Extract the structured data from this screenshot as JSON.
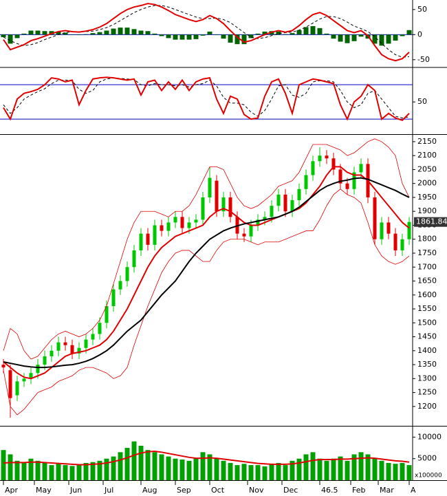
{
  "chart_data": [
    {
      "type": "macd",
      "xlim": [
        0,
        60
      ],
      "ylim": [
        -64,
        69
      ],
      "yticks": [
        -50,
        0,
        50
      ],
      "hlines": [
        0
      ],
      "series": [
        {
          "color": "#006400",
          "style": "bar",
          "values": [
            -5,
            -18,
            -7,
            2,
            8,
            8,
            7,
            7,
            6,
            4,
            0,
            -1,
            1,
            3,
            5,
            8,
            12,
            14,
            14,
            11,
            8,
            7,
            2,
            -3,
            -7,
            -10,
            -10,
            -10,
            -9,
            -2,
            6,
            -1,
            -8,
            -16,
            -19,
            -19,
            -7,
            2,
            6,
            7,
            6,
            1,
            3,
            9,
            15,
            17,
            13,
            2,
            -8,
            -14,
            -17,
            -13,
            -4,
            -8,
            -18,
            -22,
            -18,
            -12,
            -3,
            9
          ]
        },
        {
          "color": "#000000",
          "dash": true,
          "width": 1,
          "values": [
            -5,
            -12,
            -18,
            -22,
            -20,
            -16,
            -10,
            -5,
            0,
            4,
            6,
            6,
            6,
            7,
            10,
            14,
            20,
            28,
            36,
            44,
            50,
            55,
            58,
            58,
            55,
            50,
            45,
            40,
            35,
            32,
            32,
            33,
            30,
            24,
            14,
            4,
            -5,
            -8,
            -6,
            -2,
            2,
            4,
            5,
            9,
            15,
            23,
            31,
            36,
            36,
            32,
            25,
            17,
            12,
            6,
            -4,
            -18,
            -30,
            -40,
            -45,
            -44
          ]
        },
        {
          "color": "#e00000",
          "width": 2,
          "values": [
            -10,
            -30,
            -25,
            -20,
            -12,
            -8,
            -3,
            2,
            6,
            8,
            6,
            5,
            7,
            10,
            15,
            22,
            32,
            42,
            50,
            55,
            58,
            62,
            60,
            55,
            48,
            40,
            35,
            30,
            26,
            30,
            38,
            32,
            22,
            8,
            -5,
            -15,
            -12,
            -6,
            0,
            5,
            8,
            5,
            8,
            18,
            30,
            40,
            44,
            38,
            28,
            18,
            8,
            4,
            8,
            -2,
            -22,
            -40,
            -48,
            -52,
            -48,
            -35
          ]
        }
      ]
    },
    {
      "type": "stochastic",
      "xlim": [
        0,
        60
      ],
      "ylim": [
        -5,
        109
      ],
      "yticks": [
        50
      ],
      "hlines": [
        80,
        20
      ],
      "series": [
        {
          "color": "#000000",
          "dash": true,
          "width": 1,
          "values": [
            45,
            30,
            40,
            55,
            62,
            68,
            73,
            82,
            88,
            88,
            87,
            72,
            65,
            70,
            85,
            90,
            92,
            91,
            90,
            89,
            80,
            78,
            82,
            80,
            80,
            78,
            80,
            76,
            80,
            82,
            88,
            78,
            58,
            48,
            48,
            45,
            32,
            25,
            35,
            55,
            78,
            80,
            62,
            58,
            65,
            85,
            87,
            87,
            85,
            70,
            50,
            40,
            45,
            65,
            70,
            55,
            40,
            25,
            22,
            24
          ]
        },
        {
          "color": "#e00000",
          "width": 2,
          "values": [
            40,
            20,
            55,
            65,
            68,
            72,
            80,
            92,
            90,
            85,
            88,
            45,
            70,
            90,
            92,
            93,
            92,
            90,
            88,
            90,
            62,
            85,
            88,
            70,
            85,
            72,
            88,
            70,
            85,
            90,
            92,
            55,
            30,
            60,
            55,
            28,
            20,
            22,
            60,
            85,
            90,
            65,
            30,
            80,
            85,
            90,
            88,
            85,
            82,
            45,
            20,
            50,
            60,
            80,
            70,
            20,
            30,
            22,
            18,
            30
          ]
        }
      ]
    },
    {
      "type": "candlestick",
      "xlim": [
        0,
        60
      ],
      "ylim": [
        1133,
        2172
      ],
      "yticks": [
        1200,
        1250,
        1300,
        1350,
        1400,
        1450,
        1500,
        1550,
        1600,
        1650,
        1700,
        1750,
        1800,
        1850,
        1900,
        1950,
        2000,
        2050,
        2100,
        2150
      ],
      "up_color": "#00c800",
      "down_color": "#e00000",
      "open": [
        1350,
        1330,
        1240,
        1290,
        1300,
        1320,
        1350,
        1380,
        1400,
        1430,
        1420,
        1390,
        1410,
        1440,
        1460,
        1500,
        1560,
        1620,
        1650,
        1700,
        1760,
        1820,
        1780,
        1850,
        1830,
        1860,
        1880,
        1840,
        1860,
        1870,
        1950,
        2010,
        1900,
        1950,
        1880,
        1820,
        1810,
        1850,
        1870,
        1880,
        1920,
        1960,
        1900,
        1940,
        1980,
        2030,
        2080,
        2100,
        2090,
        2050,
        2000,
        1980,
        2040,
        2070,
        1950,
        1800,
        1860,
        1820,
        1760,
        1800
      ],
      "high": [
        1370,
        1350,
        1310,
        1320,
        1340,
        1370,
        1400,
        1420,
        1450,
        1450,
        1440,
        1430,
        1460,
        1480,
        1520,
        1580,
        1640,
        1670,
        1720,
        1780,
        1840,
        1840,
        1870,
        1870,
        1880,
        1900,
        1900,
        1880,
        1890,
        1970,
        2060,
        2030,
        1970,
        1970,
        1900,
        1840,
        1870,
        1890,
        1900,
        1940,
        1980,
        1980,
        1960,
        2000,
        2050,
        2100,
        2130,
        2120,
        2110,
        2070,
        2020,
        2060,
        2090,
        2090,
        1970,
        1880,
        1880,
        1840,
        1820,
        1880
      ],
      "low": [
        1320,
        1160,
        1220,
        1270,
        1280,
        1300,
        1330,
        1360,
        1380,
        1400,
        1370,
        1370,
        1390,
        1420,
        1440,
        1480,
        1540,
        1600,
        1630,
        1680,
        1740,
        1760,
        1760,
        1810,
        1810,
        1840,
        1820,
        1820,
        1840,
        1850,
        1930,
        1880,
        1880,
        1860,
        1800,
        1790,
        1790,
        1830,
        1850,
        1860,
        1900,
        1880,
        1880,
        1920,
        1960,
        2010,
        2060,
        2070,
        2030,
        1980,
        1960,
        1960,
        2020,
        1930,
        1780,
        1780,
        1800,
        1740,
        1740,
        1780
      ],
      "close": [
        1340,
        1230,
        1290,
        1300,
        1320,
        1350,
        1380,
        1400,
        1430,
        1420,
        1390,
        1410,
        1440,
        1460,
        1500,
        1560,
        1620,
        1650,
        1700,
        1760,
        1820,
        1780,
        1850,
        1830,
        1860,
        1880,
        1840,
        1860,
        1870,
        1950,
        2020,
        1900,
        1950,
        1880,
        1820,
        1810,
        1850,
        1870,
        1880,
        1920,
        1960,
        1900,
        1940,
        1980,
        2030,
        2080,
        2100,
        2090,
        2050,
        2000,
        1980,
        2040,
        2070,
        1950,
        1800,
        1860,
        1820,
        1760,
        1800,
        1861.84
      ],
      "last_price_label": "1861.84",
      "series": [
        {
          "color": "#e00000",
          "width": 0.8,
          "values": [
            1400,
            1480,
            1460,
            1400,
            1370,
            1380,
            1410,
            1440,
            1460,
            1470,
            1460,
            1450,
            1460,
            1480,
            1510,
            1560,
            1640,
            1720,
            1800,
            1860,
            1900,
            1900,
            1900,
            1890,
            1880,
            1900,
            1900,
            1920,
            1960,
            2010,
            2060,
            2060,
            2050,
            2000,
            1950,
            1920,
            1910,
            1920,
            1940,
            1960,
            1990,
            2000,
            2010,
            2040,
            2090,
            2140,
            2140,
            2140,
            2130,
            2120,
            2100,
            2110,
            2130,
            2150,
            2160,
            2150,
            2130,
            2100,
            2000,
            1950
          ]
        },
        {
          "color": "#e00000",
          "width": 0.8,
          "values": [
            1330,
            1200,
            1170,
            1190,
            1220,
            1250,
            1260,
            1270,
            1290,
            1300,
            1310,
            1330,
            1340,
            1340,
            1330,
            1320,
            1300,
            1310,
            1340,
            1420,
            1490,
            1560,
            1620,
            1680,
            1720,
            1750,
            1760,
            1760,
            1740,
            1720,
            1720,
            1760,
            1790,
            1800,
            1800,
            1800,
            1790,
            1780,
            1790,
            1790,
            1790,
            1800,
            1810,
            1820,
            1830,
            1830,
            1870,
            1920,
            1960,
            1980,
            1960,
            1950,
            1930,
            1860,
            1780,
            1740,
            1720,
            1710,
            1720,
            1740
          ]
        },
        {
          "color": "#e00000",
          "width": 2,
          "values": [
            1360,
            1340,
            1320,
            1305,
            1300,
            1310,
            1320,
            1340,
            1360,
            1380,
            1390,
            1395,
            1400,
            1410,
            1420,
            1440,
            1470,
            1510,
            1550,
            1600,
            1650,
            1700,
            1740,
            1770,
            1790,
            1810,
            1820,
            1830,
            1840,
            1850,
            1880,
            1900,
            1910,
            1900,
            1880,
            1860,
            1850,
            1850,
            1860,
            1870,
            1880,
            1890,
            1900,
            1910,
            1930,
            1960,
            1990,
            2030,
            2060,
            2060,
            2040,
            2030,
            2030,
            2010,
            1980,
            1950,
            1920,
            1890,
            1860,
            1840
          ]
        },
        {
          "color": "#000000",
          "width": 2,
          "values": [
            1360,
            1355,
            1350,
            1345,
            1342,
            1340,
            1340,
            1342,
            1345,
            1348,
            1350,
            1355,
            1362,
            1372,
            1385,
            1400,
            1420,
            1445,
            1470,
            1490,
            1510,
            1540,
            1570,
            1600,
            1625,
            1650,
            1685,
            1720,
            1750,
            1775,
            1800,
            1815,
            1830,
            1840,
            1848,
            1855,
            1860,
            1865,
            1870,
            1875,
            1880,
            1890,
            1900,
            1915,
            1935,
            1955,
            1975,
            1990,
            2000,
            2008,
            2012,
            2018,
            2020,
            2015,
            2005,
            1995,
            1985,
            1975,
            1962,
            1950
          ]
        }
      ]
    },
    {
      "type": "volume",
      "xlim": [
        0,
        60
      ],
      "ylim": [
        0,
        12300
      ],
      "yticks": [
        5000,
        10000
      ],
      "unit_label": "x100000",
      "xticks": [
        {
          "value": 0.5,
          "label": "Apr"
        },
        {
          "value": 5,
          "label": "May"
        },
        {
          "value": 10,
          "label": "Jun"
        },
        {
          "value": 15,
          "label": "Jul"
        },
        {
          "value": 20.5,
          "label": "Aug"
        },
        {
          "value": 25.5,
          "label": "Sep"
        },
        {
          "value": 30.5,
          "label": "Oct"
        },
        {
          "value": 36,
          "label": "Nov"
        },
        {
          "value": 41,
          "label": "Dec"
        },
        46.5,
        {
          "value": 51,
          "label": "Feb"
        },
        {
          "value": 55,
          "label": "Mar"
        },
        {
          "value": 59.5,
          "label": "A"
        }
      ],
      "color": "#00a000",
      "values": [
        7000,
        6000,
        4500,
        4000,
        5000,
        4500,
        4000,
        3500,
        3800,
        3500,
        3300,
        3500,
        4000,
        4200,
        4500,
        5000,
        5500,
        6500,
        7500,
        9000,
        8000,
        7000,
        6500,
        6000,
        5500,
        5000,
        4800,
        4500,
        5000,
        6500,
        6000,
        5000,
        4500,
        4000,
        3500,
        3800,
        3500,
        3500,
        3200,
        3800,
        4000,
        3500,
        4500,
        5000,
        6000,
        6500,
        5000,
        4500,
        5000,
        5500,
        4500,
        6000,
        6500,
        6000,
        5000,
        4500,
        4000,
        3800,
        4000,
        3500
      ],
      "series": [
        {
          "color": "#e00000",
          "width": 2,
          "values": [
            4000,
            4100,
            4100,
            4100,
            4200,
            4200,
            4100,
            4000,
            3900,
            3800,
            3700,
            3600,
            3600,
            3700,
            3800,
            4000,
            4300,
            4700,
            5200,
            5800,
            6300,
            6600,
            6700,
            6500,
            6200,
            5900,
            5600,
            5300,
            5100,
            5100,
            5200,
            5100,
            4900,
            4700,
            4500,
            4300,
            4100,
            3900,
            3800,
            3700,
            3700,
            3700,
            3800,
            4000,
            4300,
            4600,
            4800,
            4800,
            4800,
            4900,
            4900,
            5000,
            5100,
            5200,
            5100,
            4900,
            4700,
            4500,
            4400,
            4200
          ]
        }
      ]
    }
  ]
}
